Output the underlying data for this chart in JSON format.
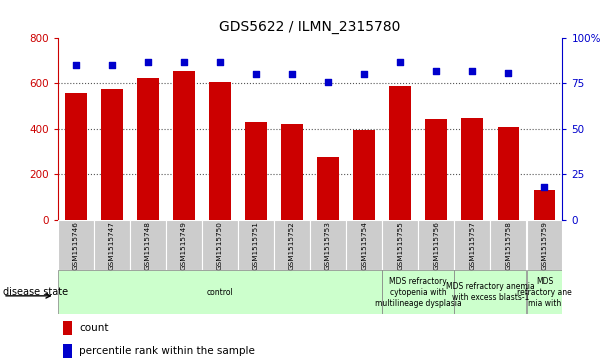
{
  "title": "GDS5622 / ILMN_2315780",
  "samples": [
    "GSM1515746",
    "GSM1515747",
    "GSM1515748",
    "GSM1515749",
    "GSM1515750",
    "GSM1515751",
    "GSM1515752",
    "GSM1515753",
    "GSM1515754",
    "GSM1515755",
    "GSM1515756",
    "GSM1515757",
    "GSM1515758",
    "GSM1515759"
  ],
  "counts": [
    560,
    575,
    625,
    655,
    605,
    430,
    420,
    275,
    395,
    590,
    445,
    450,
    410,
    130
  ],
  "percentiles": [
    85,
    85,
    87,
    87,
    87,
    80,
    80,
    76,
    80,
    87,
    82,
    82,
    81,
    18
  ],
  "ylim_left": [
    0,
    800
  ],
  "ylim_right": [
    0,
    100
  ],
  "yticks_left": [
    0,
    200,
    400,
    600,
    800
  ],
  "yticks_right": [
    0,
    25,
    50,
    75,
    100
  ],
  "bar_color": "#cc0000",
  "dot_color": "#0000cc",
  "bar_width": 0.6,
  "group_defs": [
    {
      "label": "control",
      "start": 0,
      "end": 8
    },
    {
      "label": "MDS refractory\ncytopenia with\nmultilineage dysplasia",
      "start": 9,
      "end": 10
    },
    {
      "label": "MDS refractory anemia\nwith excess blasts-1",
      "start": 11,
      "end": 12
    },
    {
      "label": "MDS\nrefractory ane\nmia with",
      "start": 13,
      "end": 13
    }
  ],
  "group_color": "#ccffcc",
  "disease_state_label": "disease state",
  "legend_count_label": "count",
  "legend_percentile_label": "percentile rank within the sample",
  "tick_label_bg": "#cccccc",
  "dotted_grid_color": "#555555",
  "right_axis_color": "#0000cc",
  "left_axis_color": "#cc0000",
  "bg_color": "#ffffff"
}
